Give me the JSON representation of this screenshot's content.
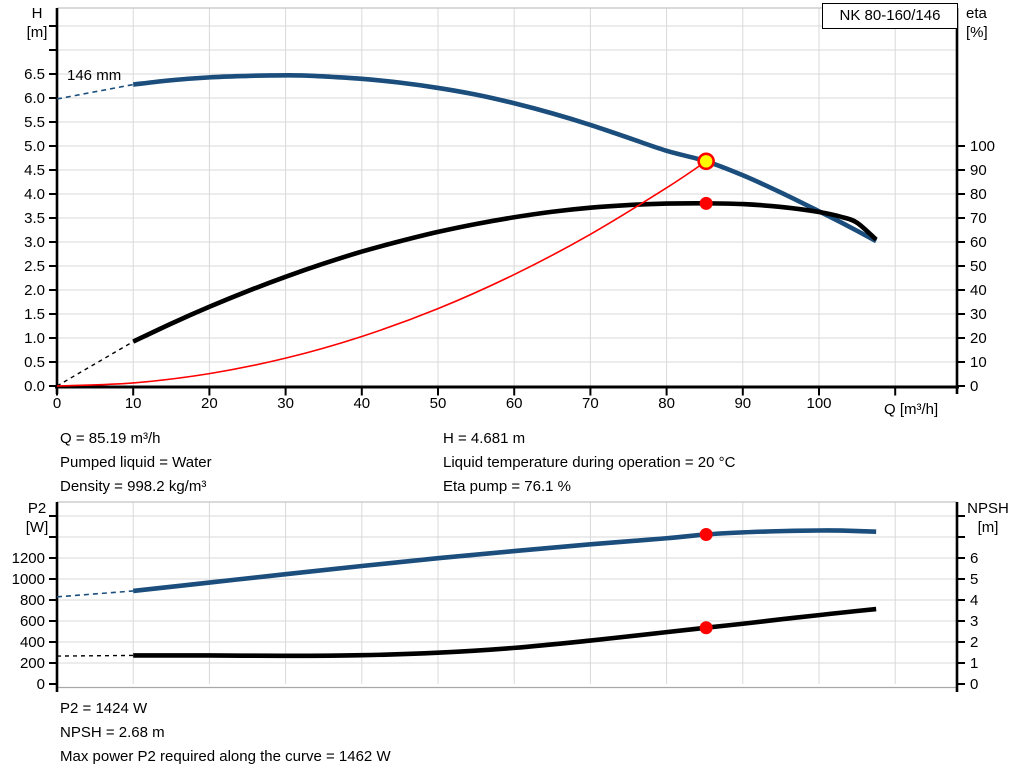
{
  "pump_name": "NK 80-160/146",
  "impeller_label": "146 mm",
  "labels": {
    "h_title": "H",
    "h_unit": "[m]",
    "eta_title": "eta",
    "eta_unit": "[%]",
    "q_title": "Q [m³/h]",
    "p2_title": "P2",
    "p2_unit": "[W]",
    "npsh_title": "NPSH",
    "npsh_unit": "[m]"
  },
  "info": {
    "q": "Q = 85.19 m³/h",
    "liquid": "Pumped liquid = Water",
    "density": "Density = 998.2 kg/m³",
    "h": "H = 4.681 m",
    "temp": "Liquid temperature during operation = 20 °C",
    "eta": "Eta pump = 76.1 %"
  },
  "results": {
    "p2": "P2 = 1424 W",
    "npsh": "NPSH = 2.68 m",
    "maxp": "Max power P2 required along the curve = 1462 W"
  },
  "colors": {
    "blue": "#1b4e7c",
    "red": "#ff0000",
    "yellow": "#ffff00",
    "black": "#000000",
    "grid": "#d9d9d9",
    "border": "#c4c4c4"
  },
  "chart_data": [
    {
      "type": "line",
      "title": "NK 80-160/146",
      "x_axis": {
        "label": "Q [m³/h]",
        "min": 0,
        "max": 118,
        "ticks_labeled": [
          0,
          10,
          20,
          30,
          40,
          50,
          60,
          70,
          80,
          90,
          100
        ],
        "ticks_unlabeled": [
          110
        ],
        "decimals": 0
      },
      "y_left": {
        "label": "H [m]",
        "min": 0,
        "max": 7.9,
        "ticks_labeled": [
          0,
          0.5,
          1,
          1.5,
          2,
          2.5,
          3,
          3.5,
          4,
          4.5,
          5,
          5.5,
          6,
          6.5
        ],
        "ticks_unlabeled": [
          7,
          7.5
        ],
        "decimals": 1
      },
      "y_right": {
        "label": "eta [%]",
        "min": 0,
        "max": 100,
        "ticks_labeled": [
          0,
          10,
          20,
          30,
          40,
          50,
          60,
          70,
          80,
          90,
          100
        ],
        "ticks_unlabeled": [],
        "decimals": 0
      },
      "series": [
        {
          "name": "head-curve-extension",
          "axis": "left",
          "color": "blue",
          "width": 1.6,
          "dash": "5 4",
          "x": [
            0,
            10
          ],
          "y": [
            5.98,
            6.28
          ]
        },
        {
          "name": "head-curve-146mm",
          "axis": "left",
          "color": "blue",
          "width": 4.6,
          "x": [
            10,
            15,
            20,
            25,
            28,
            32,
            36,
            40,
            45,
            50,
            55,
            60,
            65,
            70,
            75,
            80,
            85.19,
            90,
            95,
            100,
            103,
            107.5
          ],
          "y": [
            6.28,
            6.37,
            6.43,
            6.46,
            6.47,
            6.47,
            6.44,
            6.4,
            6.32,
            6.21,
            6.07,
            5.89,
            5.68,
            5.44,
            5.17,
            4.9,
            4.681,
            4.39,
            4.03,
            3.64,
            3.4,
            3.02
          ]
        },
        {
          "name": "eta-curve-extension",
          "axis": "right",
          "color": "black",
          "width": 1.4,
          "dash": "4 4",
          "x": [
            0,
            10
          ],
          "y": [
            0,
            18.5
          ]
        },
        {
          "name": "eta-curve",
          "axis": "right",
          "color": "black",
          "width": 4.6,
          "x": [
            10,
            15,
            20,
            25,
            30,
            35,
            40,
            45,
            50,
            55,
            60,
            65,
            70,
            75,
            80,
            85.19,
            90,
            95,
            100,
            103,
            105,
            107.5
          ],
          "y": [
            18.5,
            26.0,
            33.0,
            39.5,
            45.5,
            51.0,
            56.0,
            60.3,
            64.2,
            67.5,
            70.3,
            72.6,
            74.3,
            75.4,
            76.0,
            76.1,
            75.8,
            74.6,
            72.5,
            70.4,
            68.0,
            61.0
          ]
        },
        {
          "name": "system-curve",
          "axis": "left",
          "color": "red",
          "width": 1.6,
          "x": [
            0,
            10,
            20,
            30,
            40,
            50,
            60,
            70,
            80,
            85.19
          ],
          "y": [
            0,
            0.064,
            0.258,
            0.58,
            1.032,
            1.612,
            2.322,
            3.16,
            4.128,
            4.681
          ]
        }
      ],
      "points": [
        {
          "name": "duty-point",
          "axis": "left",
          "x": 85.19,
          "y": 4.681,
          "fill": "yellow",
          "stroke": "red",
          "r": 7.5,
          "stroke_width": 2.6
        },
        {
          "name": "eta-point",
          "axis": "right",
          "x": 85.19,
          "y": 76.1,
          "fill": "red",
          "r": 6.5
        }
      ]
    },
    {
      "type": "line",
      "title": "P2 / NPSH vs Q",
      "x_axis": {
        "label": "",
        "min": 0,
        "max": 118,
        "ticks_labeled": [],
        "ticks_unlabeled": [
          10,
          20,
          30,
          40,
          50,
          60,
          70,
          80,
          90,
          100,
          110
        ],
        "decimals": 0
      },
      "y_left": {
        "label": "P2 [W]",
        "min": 0,
        "max": 1735,
        "ticks_labeled": [
          0,
          200,
          400,
          600,
          800,
          1000,
          1200
        ],
        "ticks_unlabeled": [
          1400,
          1600
        ],
        "decimals": 0
      },
      "y_right": {
        "label": "NPSH [m]",
        "min": 0,
        "max": 8.67,
        "ticks_labeled": [
          0,
          1,
          2,
          3,
          4,
          5,
          6
        ],
        "ticks_unlabeled": [
          7,
          8
        ],
        "decimals": 0
      },
      "series": [
        {
          "name": "p2-curve-extension",
          "axis": "left",
          "color": "blue",
          "width": 1.6,
          "dash": "5 4",
          "x": [
            0,
            10
          ],
          "y": [
            830,
            886
          ]
        },
        {
          "name": "p2-curve",
          "axis": "left",
          "color": "blue",
          "width": 4.6,
          "x": [
            10,
            20,
            30,
            40,
            50,
            60,
            70,
            80,
            85.19,
            90,
            95,
            100,
            103,
            107.5
          ],
          "y": [
            886,
            966,
            1046,
            1124,
            1198,
            1266,
            1330,
            1388,
            1424,
            1444,
            1456,
            1462,
            1461,
            1451
          ]
        },
        {
          "name": "npsh-curve-extension",
          "axis": "right",
          "color": "black",
          "width": 1.4,
          "dash": "4 4",
          "x": [
            0,
            10
          ],
          "y": [
            1.33,
            1.36
          ]
        },
        {
          "name": "npsh-curve",
          "axis": "right",
          "color": "black",
          "width": 4.6,
          "x": [
            10,
            20,
            30,
            40,
            50,
            60,
            70,
            80,
            85.19,
            90,
            95,
            100,
            103,
            107.5
          ],
          "y": [
            1.36,
            1.36,
            1.34,
            1.37,
            1.49,
            1.72,
            2.07,
            2.47,
            2.68,
            2.87,
            3.08,
            3.28,
            3.4,
            3.57
          ]
        }
      ],
      "points": [
        {
          "name": "p2-point",
          "axis": "left",
          "x": 85.19,
          "y": 1424,
          "fill": "red",
          "r": 6.5
        },
        {
          "name": "npsh-point",
          "axis": "right",
          "x": 85.19,
          "y": 2.68,
          "fill": "red",
          "r": 6.5
        }
      ]
    }
  ]
}
